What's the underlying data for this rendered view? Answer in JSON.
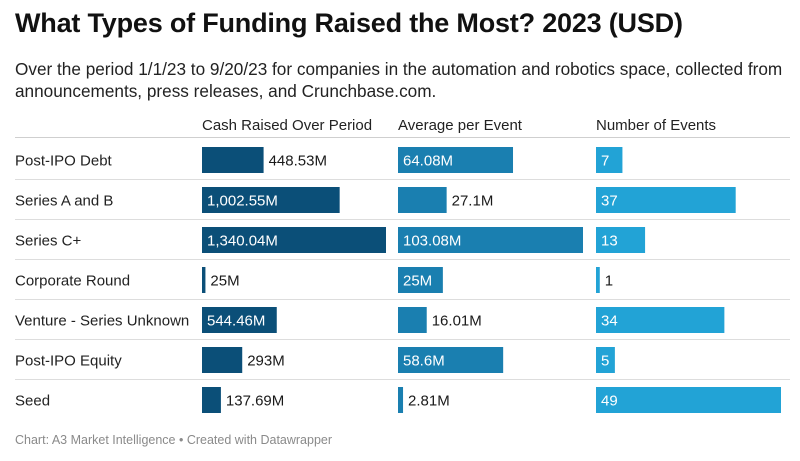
{
  "title": "What Types of Funding Raised the Most? 2023 (USD)",
  "subtitle": "Over the period 1/1/23 to 9/20/23 for companies in the automation and robotics space, collected from announcements, press releases, and Crunchbase.com.",
  "footer": "Chart: A3 Market Intelligence • Created with Datawrapper",
  "colors": {
    "cash": "#0b4f78",
    "average": "#1a7fb0",
    "events": "#22a3d6",
    "label_inside": "#ffffff",
    "label_outside": "#1a1a1a",
    "separator": "#dddddd"
  },
  "chart_data": {
    "type": "bar",
    "orientation": "horizontal",
    "categories": [
      "Post-IPO Debt",
      "Series A and B",
      "Series C+",
      "Corporate Round",
      "Venture - Series Unknown",
      "Post-IPO Equity",
      "Seed"
    ],
    "series": [
      {
        "name": "Cash Raised Over Period",
        "values": [
          448.53,
          1002.55,
          1340.04,
          25,
          544.46,
          293,
          137.69
        ],
        "labels": [
          "448.53M",
          "1,002.55M",
          "1,340.04M",
          "25M",
          "544.46M",
          "293M",
          "137.69M"
        ]
      },
      {
        "name": "Average per Event",
        "values": [
          64.08,
          27.1,
          103.08,
          25,
          16.01,
          58.6,
          2.81
        ],
        "labels": [
          "64.08M",
          "27.1M",
          "103.08M",
          "25M",
          "16.01M",
          "58.6M",
          "2.81M"
        ]
      },
      {
        "name": "Number of Events",
        "values": [
          7,
          37,
          13,
          1,
          34,
          5,
          49
        ],
        "labels": [
          "7",
          "37",
          "13",
          "1",
          "34",
          "5",
          "49"
        ]
      }
    ],
    "title": "What Types of Funding Raised the Most? 2023 (USD)",
    "xlabel": "",
    "ylabel": ""
  }
}
